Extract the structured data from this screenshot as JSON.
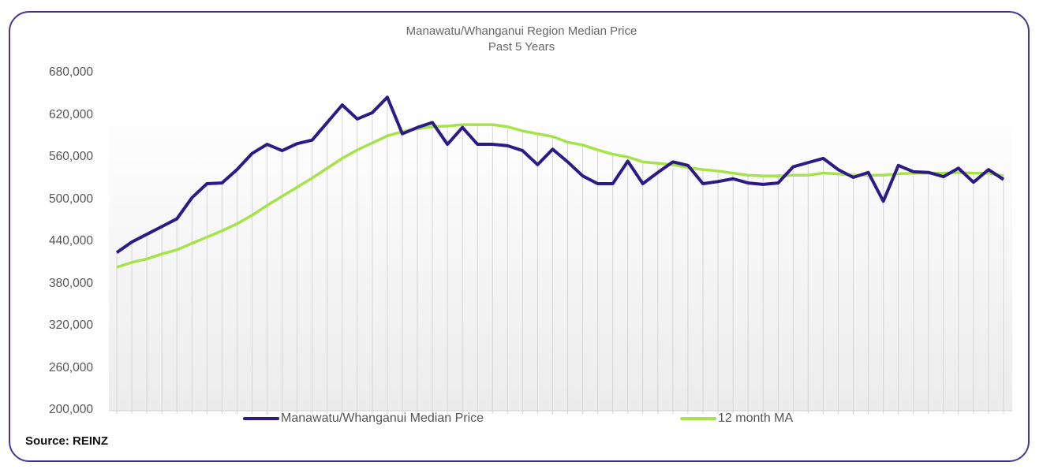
{
  "chart_data": {
    "type": "line",
    "title": "Manawatu/Whanganui Region  Median Price",
    "subtitle": "Past 5 Years",
    "xlabel": "",
    "ylabel": "",
    "ylim": [
      200000,
      680000
    ],
    "yticks": [
      "680,000",
      "620,000",
      "560,000",
      "500,000",
      "440,000",
      "380,000",
      "320,000",
      "260,000",
      "200,000"
    ],
    "ytick_values": [
      680000,
      620000,
      560000,
      500000,
      440000,
      380000,
      320000,
      260000,
      200000
    ],
    "grid": "vertical",
    "legend_position": "bottom",
    "series": [
      {
        "name": "Manawatu/Whanganui Median Price",
        "color": "#2e1a87",
        "values": [
          425000,
          440000,
          451000,
          462000,
          473000,
          503000,
          523000,
          524000,
          543000,
          566000,
          579000,
          570000,
          580000,
          585000,
          610000,
          635000,
          615000,
          624000,
          646000,
          594000,
          603000,
          610000,
          579000,
          603000,
          579000,
          579000,
          577000,
          570000,
          550000,
          572000,
          554000,
          534000,
          523000,
          523000,
          555000,
          523000,
          539000,
          554000,
          549000,
          523000,
          526000,
          530000,
          524000,
          522000,
          524000,
          547000,
          553000,
          559000,
          543000,
          532000,
          539000,
          498000,
          549000,
          540000,
          539000,
          533000,
          545000,
          525000,
          543000,
          529000
        ]
      },
      {
        "name": "12 month MA",
        "color": "#a6e34a",
        "values": [
          404000,
          411000,
          416000,
          423000,
          429000,
          438000,
          447000,
          456000,
          466000,
          478000,
          492000,
          505000,
          518000,
          531000,
          545000,
          559000,
          571000,
          581000,
          591000,
          597000,
          601000,
          604000,
          605000,
          607000,
          607000,
          607000,
          604000,
          598000,
          594000,
          590000,
          582000,
          578000,
          571000,
          565000,
          561000,
          554000,
          552000,
          550000,
          546000,
          543000,
          541000,
          538000,
          535000,
          534000,
          534000,
          535000,
          535000,
          538000,
          537000,
          535000,
          535000,
          535000,
          537000,
          538000,
          538000,
          538000,
          539000,
          538000,
          538000,
          534000
        ]
      }
    ]
  },
  "source": "Source: REINZ"
}
